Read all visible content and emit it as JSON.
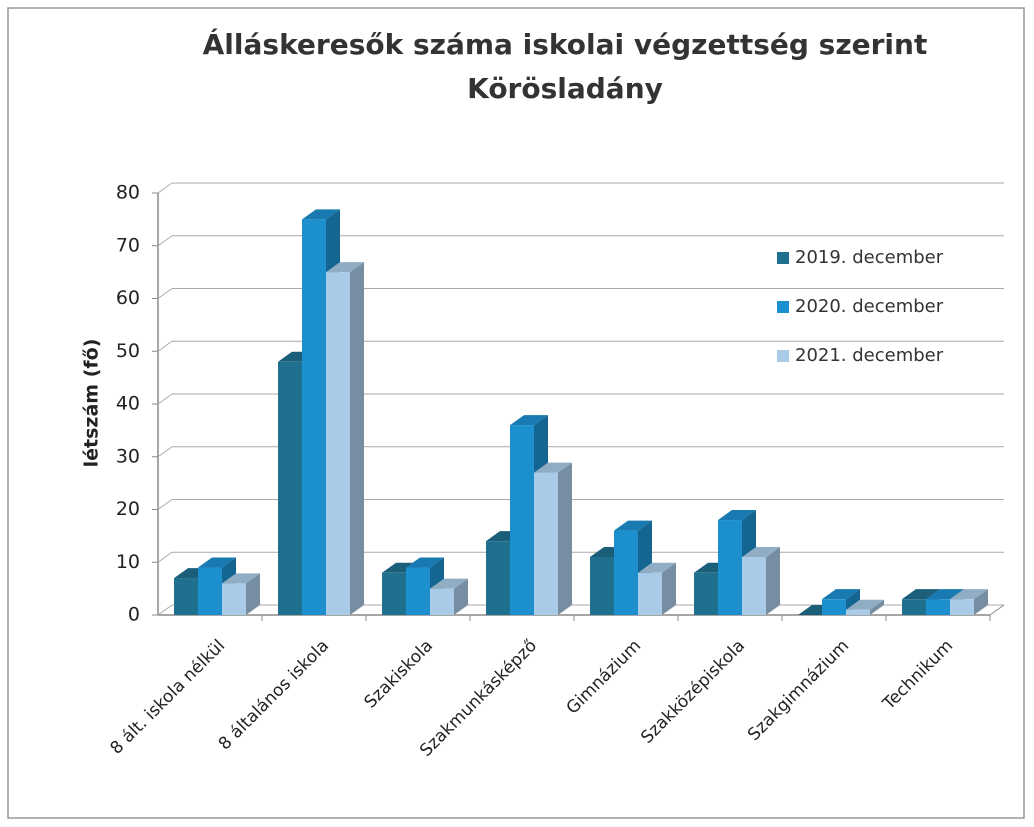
{
  "chart_data": {
    "type": "bar",
    "title": "Álláskeresők száma iskolai végzettség szerint",
    "subtitle": "Körösladány",
    "y_label": "létszám (fő)",
    "categories": [
      "8 ált. iskola nélkül",
      "8 általános iskola",
      "Szakiskola",
      "Szakmunkásképző",
      "Gimnázium",
      "Szakközépiskola",
      "Szakgimnázium",
      "Technikum"
    ],
    "series": [
      {
        "name": "2019. december",
        "color": "#1f6f8e",
        "values": [
          7,
          48,
          8,
          14,
          11,
          8,
          0,
          3
        ]
      },
      {
        "name": "2020. december",
        "color": "#1c90cf",
        "values": [
          9,
          75,
          9,
          36,
          16,
          18,
          3,
          3
        ]
      },
      {
        "name": "2021. december",
        "color": "#aacbe7",
        "values": [
          6,
          65,
          5,
          27,
          8,
          11,
          1,
          3
        ]
      }
    ],
    "ylim": [
      0,
      80
    ],
    "yticks": [
      0,
      10,
      20,
      30,
      40,
      50,
      60,
      70,
      80
    ],
    "grid": true,
    "legend": "right"
  }
}
